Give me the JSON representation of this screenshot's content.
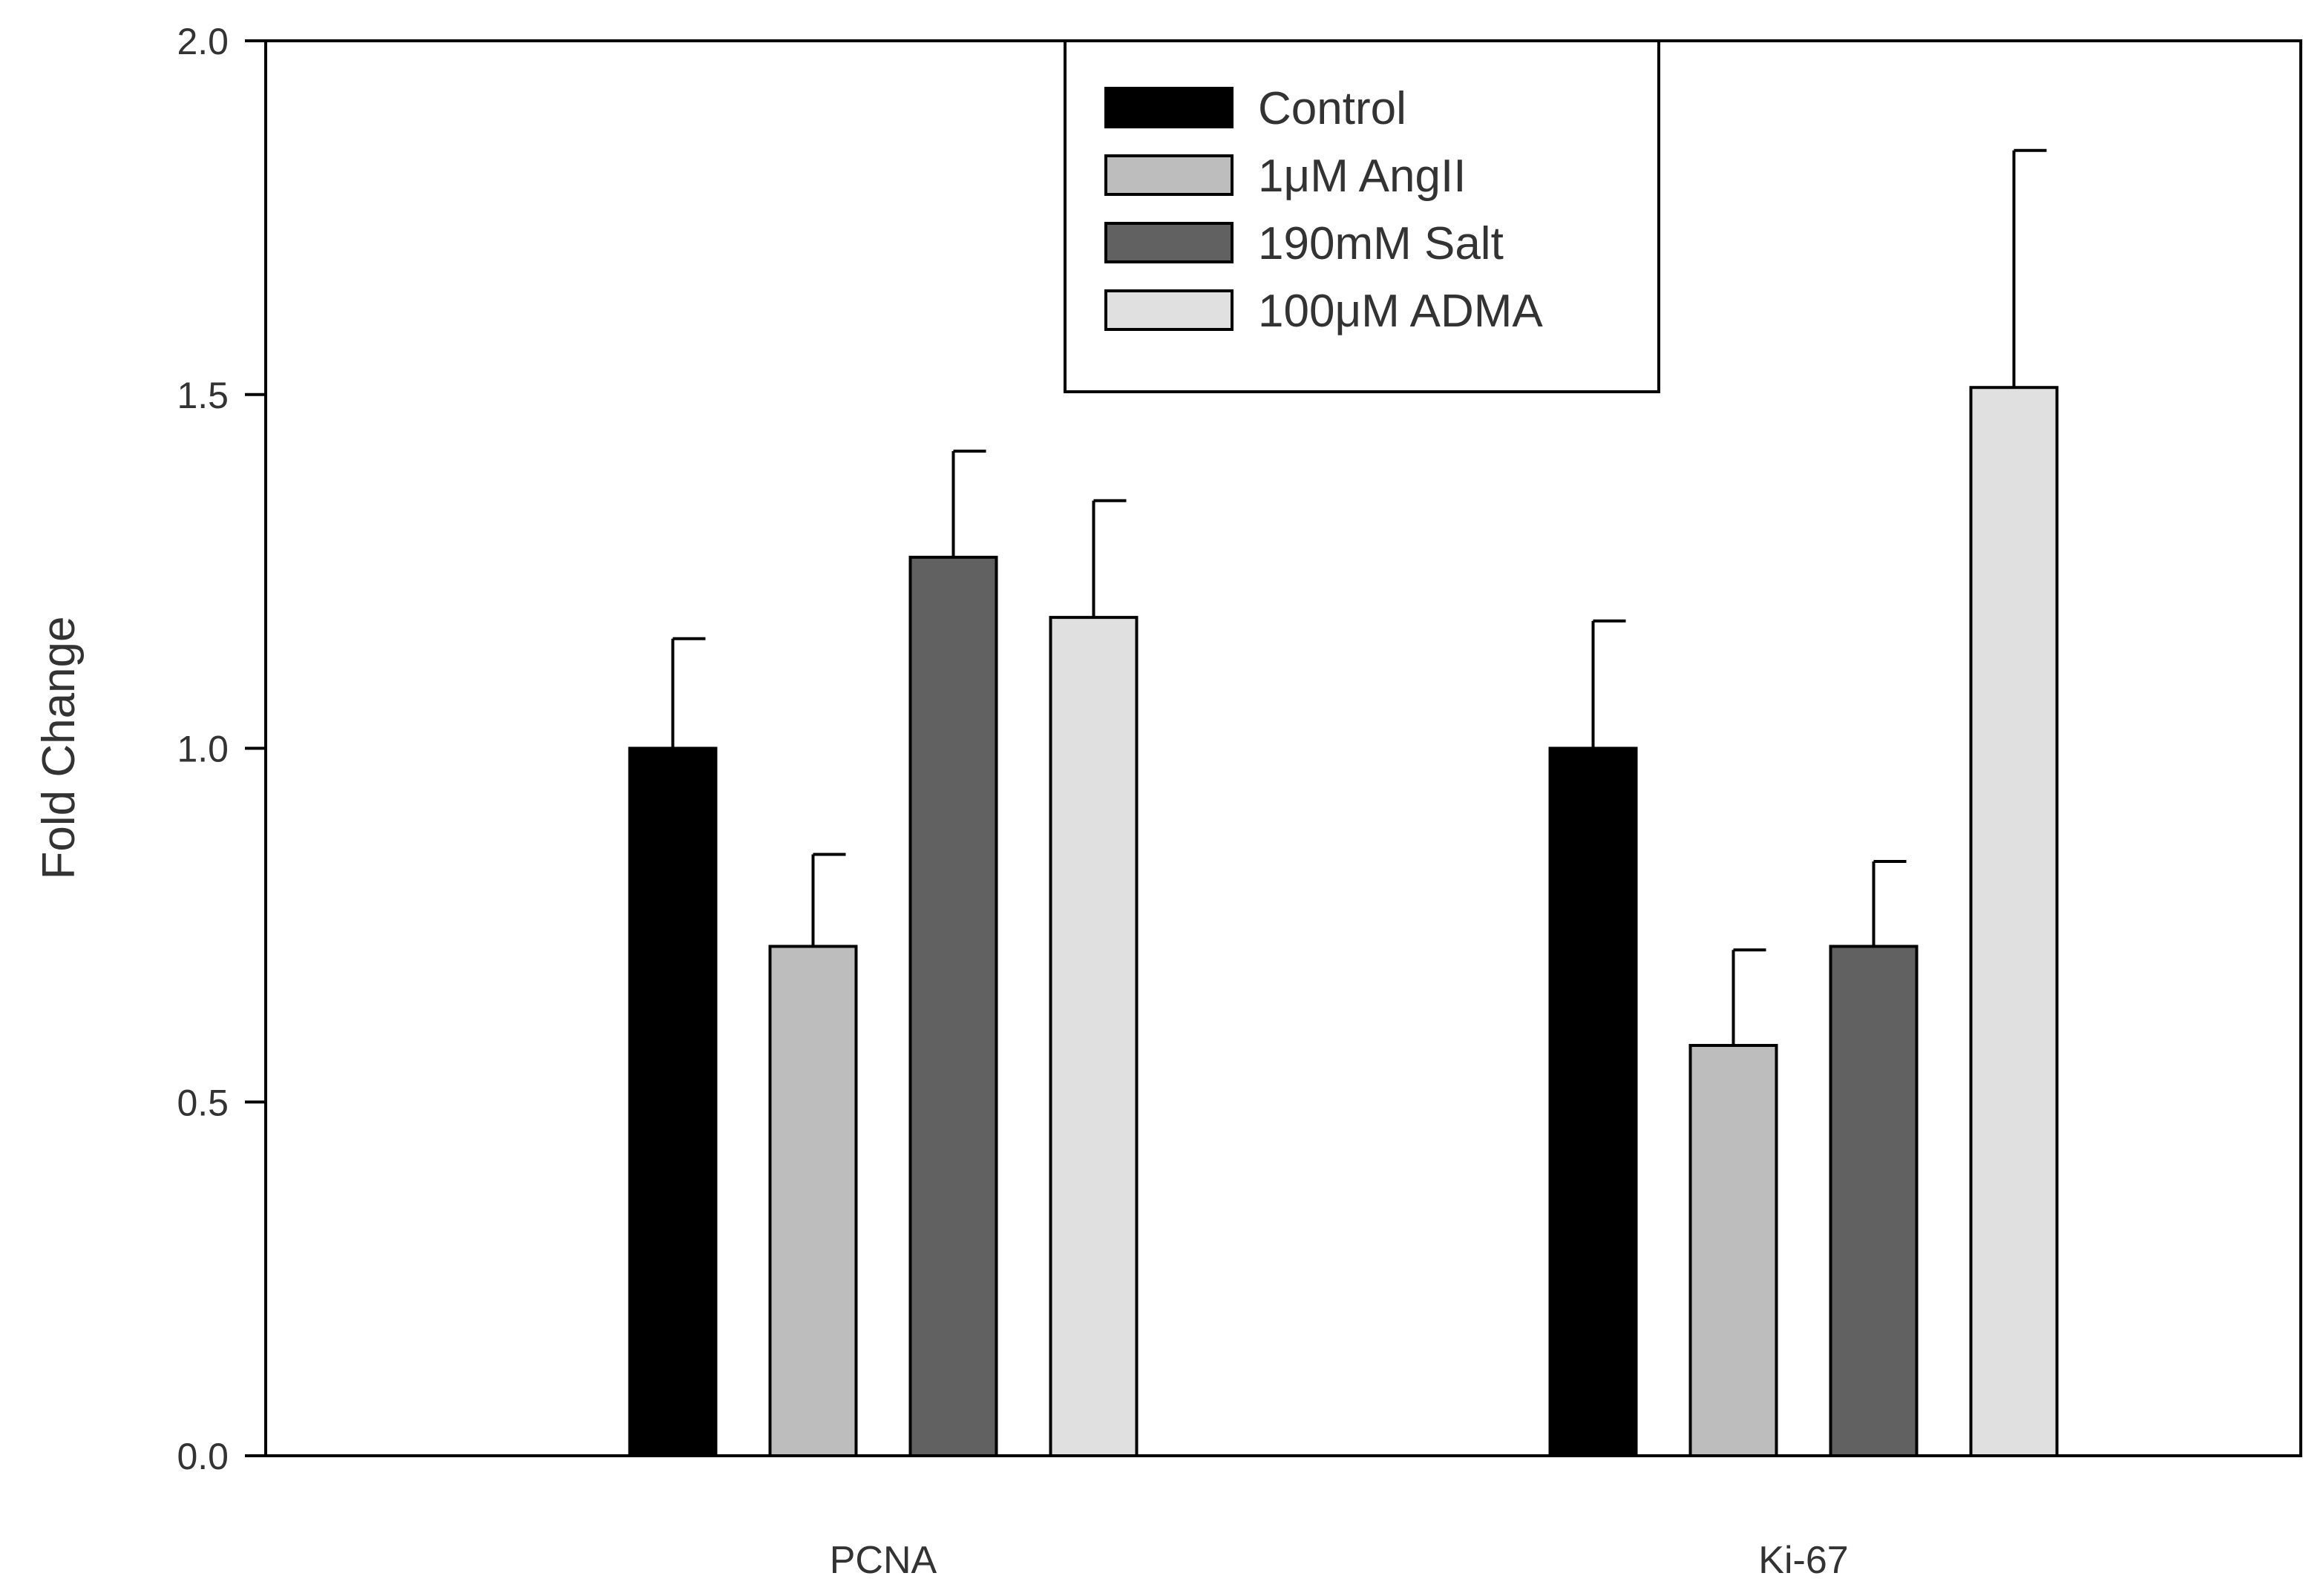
{
  "chart_data": {
    "type": "bar",
    "title": "",
    "xlabel": "",
    "ylabel": "Fold Change",
    "ylim": [
      0,
      2.0
    ],
    "yticks": [
      0.0,
      0.5,
      1.0,
      1.5,
      2.0
    ],
    "ytick_labels": [
      "0.0",
      "0.5",
      "1.0",
      "1.5",
      "2.0"
    ],
    "grid": false,
    "legend_position": "top-center",
    "categories": [
      "PCNA",
      "Ki-67"
    ],
    "series": [
      {
        "name": "Control",
        "color": "#000000",
        "values": [
          1.0,
          1.0
        ],
        "errors": [
          0.155,
          0.18
        ]
      },
      {
        "name": "1μM AngII",
        "color": "#bdbdbd",
        "values": [
          0.72,
          0.58
        ],
        "errors": [
          0.13,
          0.135
        ]
      },
      {
        "name": "190mM Salt",
        "color": "#616161",
        "values": [
          1.27,
          0.72
        ],
        "errors": [
          0.15,
          0.12
        ]
      },
      {
        "name": "100μM ADMA",
        "color": "#e0e0e0",
        "values": [
          1.185,
          1.51
        ],
        "errors": [
          0.165,
          0.335
        ]
      }
    ]
  }
}
